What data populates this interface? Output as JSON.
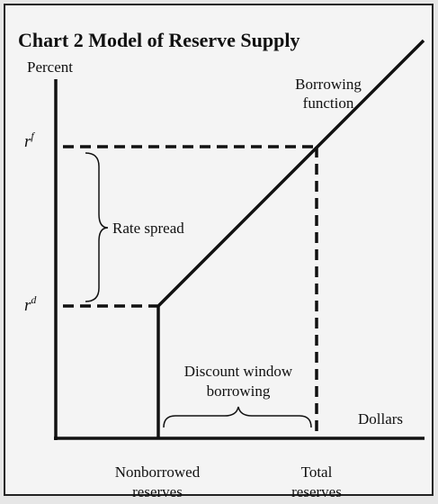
{
  "title": "Chart 2   Model of Reserve Supply",
  "y_axis_label": "Percent",
  "x_axis_label": "Dollars",
  "rate_labels": [
    {
      "base": "r",
      "sup": "f"
    },
    {
      "base": "r",
      "sup": "d"
    }
  ],
  "rate_spread": "Rate spread",
  "borrowing_function": [
    "Borrowing",
    "function"
  ],
  "discount_window": [
    "Discount window",
    "borrowing"
  ],
  "nonborrowed_reserves": [
    "Nonborrowed",
    "reserves"
  ],
  "total_reserves": [
    "Total",
    "reserves"
  ]
}
